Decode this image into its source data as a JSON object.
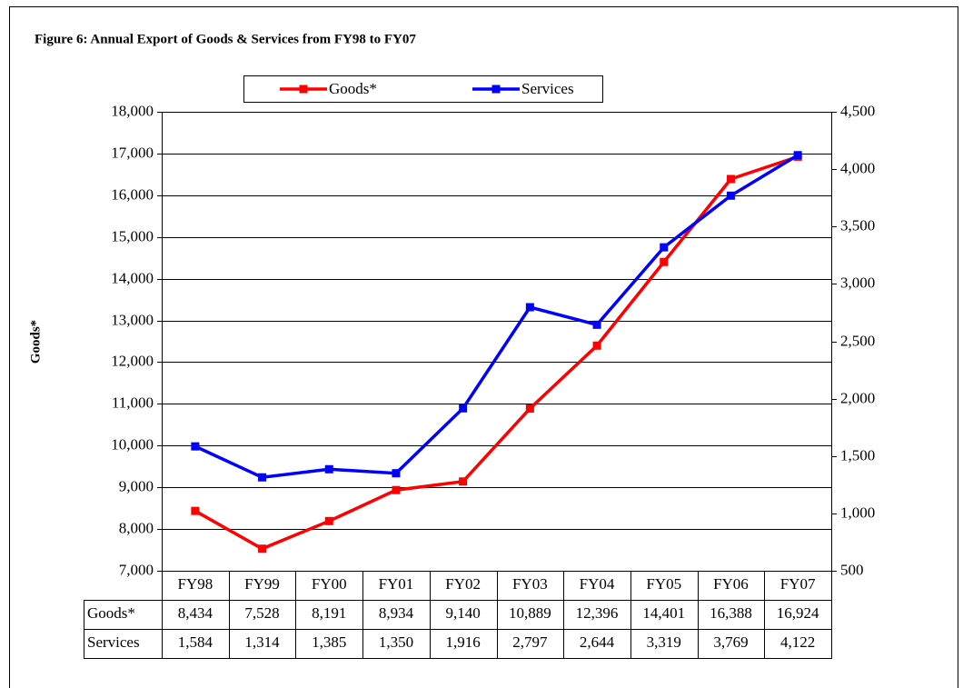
{
  "chart_data": {
    "type": "line",
    "title": "Figure 6: Annual Export of Goods & Services from FY98 to FY07",
    "ylabel": "Goods*",
    "categories": [
      "FY98",
      "FY99",
      "FY00",
      "FY01",
      "FY02",
      "FY03",
      "FY04",
      "FY05",
      "FY06",
      "FY07"
    ],
    "series": [
      {
        "name": "Goods*",
        "color": "#ff0000",
        "axis": "y",
        "values": [
          8434,
          7528,
          8191,
          8934,
          9140,
          10889,
          12396,
          14401,
          16388,
          16924
        ],
        "value_labels": [
          "8,434",
          "7,528",
          "8,191",
          "8,934",
          "9,140",
          "10,889",
          "12,396",
          "14,401",
          "16,388",
          "16,924"
        ]
      },
      {
        "name": "Services",
        "color": "#0000ff",
        "axis": "y2",
        "values": [
          1584,
          1314,
          1385,
          1350,
          1916,
          2797,
          2644,
          3319,
          3769,
          4122
        ],
        "value_labels": [
          "1,584",
          "1,314",
          "1,385",
          "1,350",
          "1,916",
          "2,797",
          "2,644",
          "3,319",
          "3,769",
          "4,122"
        ]
      }
    ],
    "ylim": [
      7000,
      18000
    ],
    "yticks": [
      {
        "value": 7000,
        "label": "7,000"
      },
      {
        "value": 8000,
        "label": "8,000"
      },
      {
        "value": 9000,
        "label": "9,000"
      },
      {
        "value": 10000,
        "label": "10,000"
      },
      {
        "value": 11000,
        "label": "11,000"
      },
      {
        "value": 12000,
        "label": "12,000"
      },
      {
        "value": 13000,
        "label": "13,000"
      },
      {
        "value": 14000,
        "label": "14,000"
      },
      {
        "value": 15000,
        "label": "15,000"
      },
      {
        "value": 16000,
        "label": "16,000"
      },
      {
        "value": 17000,
        "label": "17,000"
      },
      {
        "value": 18000,
        "label": "18,000"
      }
    ],
    "y2lim": [
      500,
      4500
    ],
    "y2ticks": [
      500,
      {
        "value": 1000,
        "label": "1,000"
      },
      {
        "value": 1500,
        "label": "1,500"
      },
      {
        "value": 2000,
        "label": "2,000"
      },
      {
        "value": 2500,
        "label": "2,500"
      },
      {
        "value": 3000,
        "label": "3,000"
      },
      {
        "value": 3500,
        "label": "3,500"
      },
      {
        "value": 4000,
        "label": "4,000"
      },
      {
        "value": 4500,
        "label": "4,500"
      }
    ],
    "grid": true,
    "legend": "top"
  }
}
